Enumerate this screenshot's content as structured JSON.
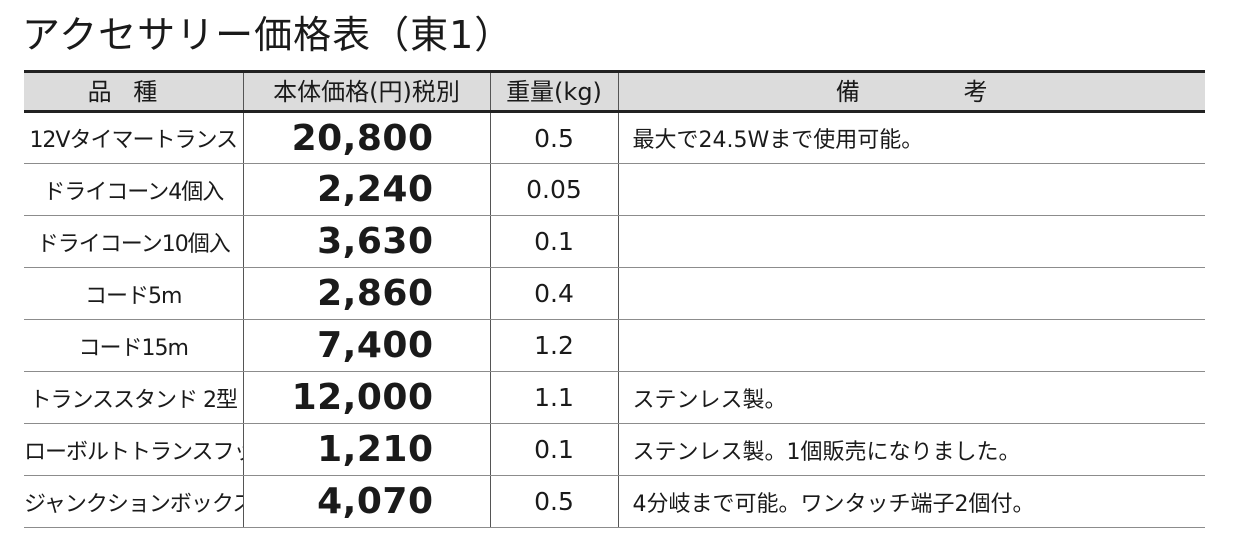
{
  "page": {
    "title": "アクセサリー価格表（東1）"
  },
  "table": {
    "headers": {
      "name": "品種",
      "price": "本体価格(円)税別",
      "weight": "重量(kg)",
      "note": "備 考"
    },
    "rows": [
      {
        "name": "12Vタイマートランス",
        "price": "20,800",
        "weight": "0.5",
        "note": "最大で24.5Wまで使用可能。"
      },
      {
        "name": "ドライコーン4個入",
        "price": "2,240",
        "weight": "0.05",
        "note": ""
      },
      {
        "name": "ドライコーン10個入",
        "price": "3,630",
        "weight": "0.1",
        "note": ""
      },
      {
        "name": "コード5m",
        "price": "2,860",
        "weight": "0.4",
        "note": ""
      },
      {
        "name": "コード15m",
        "price": "7,400",
        "weight": "1.2",
        "note": ""
      },
      {
        "name": "トランススタンド 2型",
        "price": "12,000",
        "weight": "1.1",
        "note": "ステンレス製。"
      },
      {
        "name": "ローボルトトランスフック",
        "price": "1,210",
        "weight": "0.1",
        "note": "ステンレス製。1個販売になりました。"
      },
      {
        "name": "ジャンクションボックス",
        "price": "4,070",
        "weight": "0.5",
        "note": "4分岐まで可能。ワンタッチ端子2個付。"
      }
    ]
  }
}
